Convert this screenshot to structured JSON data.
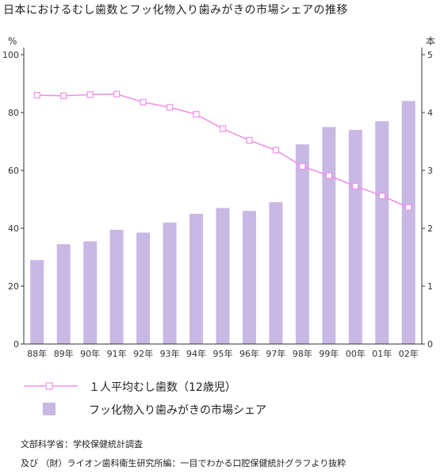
{
  "title": "日本におけるむし歯数とフッ化物入り歯みがきの市場シェアの推移",
  "chart_data": {
    "type": "bar",
    "categories": [
      "88年",
      "89年",
      "90年",
      "91年",
      "92年",
      "93年",
      "94年",
      "95年",
      "96年",
      "97年",
      "98年",
      "99年",
      "00年",
      "01年",
      "02年"
    ],
    "series": [
      {
        "name": "フッ化物入り歯みがきの市場シェア",
        "type": "bar",
        "axis": "left",
        "values": [
          29,
          34.5,
          35.5,
          39.5,
          38.5,
          42,
          45,
          47,
          46,
          49,
          69,
          75,
          74,
          77,
          84
        ]
      },
      {
        "name": "１人平均むし歯数（12歳児）",
        "type": "line",
        "axis": "right",
        "values": [
          4.3,
          4.29,
          4.31,
          4.32,
          4.18,
          4.09,
          3.97,
          3.72,
          3.52,
          3.35,
          3.07,
          2.91,
          2.73,
          2.56,
          2.36
        ]
      }
    ],
    "left_axis": {
      "unit": "%",
      "range": [
        0,
        100
      ],
      "ticks": [
        "0",
        "20",
        "40",
        "60",
        "80",
        "100"
      ]
    },
    "right_axis": {
      "unit": "本",
      "range": [
        0,
        5
      ],
      "ticks": [
        "0",
        "1",
        "2",
        "3",
        "4",
        "5"
      ]
    },
    "colors": {
      "bar": "#c8b8e4",
      "line": "#f090e8",
      "axis": "#333333"
    },
    "grid": false,
    "legend_position": "bottom"
  },
  "legend": {
    "line_label": "１人平均むし歯数（12歳児）",
    "bar_label": "フッ化物入り歯みがきの市場シェア"
  },
  "sources": [
    "文部科学省：学校保健統計調査",
    "及び （財）ライオン歯科衛生研究所編：一目でわかる口腔保健統計グラフより抜粋"
  ]
}
